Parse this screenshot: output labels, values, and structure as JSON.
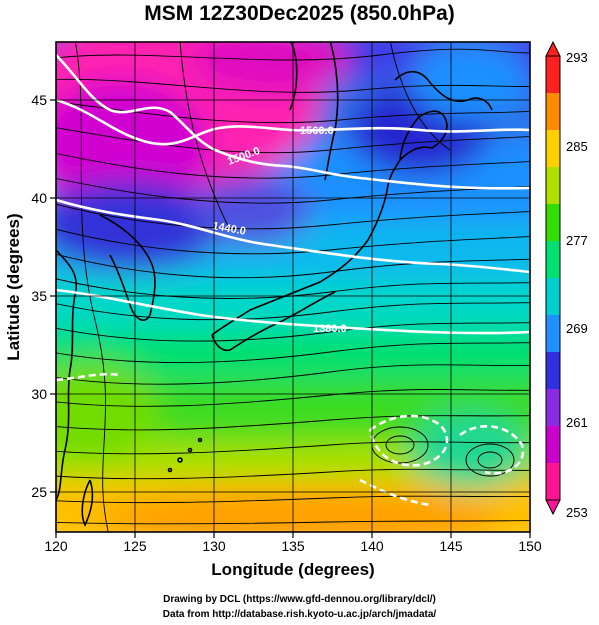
{
  "title": "MSM 12Z30Dec2025 (850.0hPa)",
  "x_axis": {
    "label": "Longitude (degrees)",
    "ticks": [
      "120",
      "125",
      "130",
      "135",
      "140",
      "145",
      "150"
    ]
  },
  "y_axis": {
    "label": "Latitude  (degrees)",
    "ticks": [
      "25",
      "30",
      "35",
      "40",
      "45"
    ]
  },
  "colorbar": {
    "ticks": [
      "293",
      "285",
      "277",
      "269",
      "261",
      "253"
    ],
    "min": 253,
    "max": 293,
    "colors": [
      "#ff1493",
      "#cc00cc",
      "#8a2be2",
      "#3030e0",
      "#1e90ff",
      "#00ced1",
      "#00e070",
      "#33dd00",
      "#b0e000",
      "#ffd000",
      "#ff8c00",
      "#ff2020"
    ]
  },
  "contour_labels": [
    "1560.0",
    "1500.0",
    "1440.0",
    "1380.0"
  ],
  "credits": {
    "drawing": "Drawing by DCL (https://www.gfd-dennou.org/library/dcl/)",
    "data": "Data from http://database.rish.kyoto-u.ac.jp/arch/jmadata/"
  },
  "chart_data": {
    "type": "heatmap",
    "title": "MSM 12Z30Dec2025 (850.0hPa)",
    "xlabel": "Longitude (degrees)",
    "ylabel": "Latitude  (degrees)",
    "xlim": [
      120,
      150
    ],
    "ylim": [
      22.5,
      47.5
    ],
    "clim": [
      253,
      293
    ],
    "colorbar_ticks": [
      253,
      261,
      269,
      277,
      285,
      293
    ],
    "contour_levels": [
      1380,
      1440,
      1500,
      1560
    ],
    "overlay": "streamlines"
  }
}
